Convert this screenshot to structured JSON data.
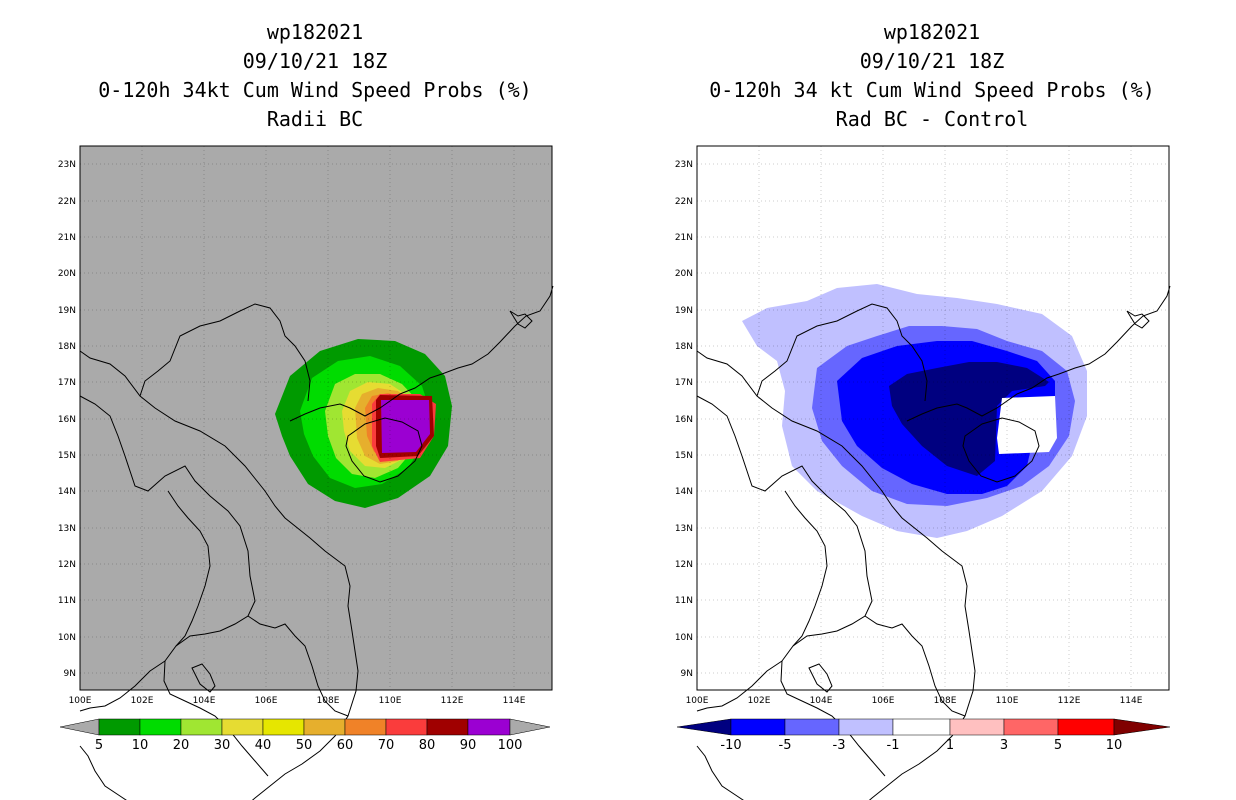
{
  "left_panel": {
    "title_lines": [
      "wp182021",
      "09/10/21 18Z",
      "0-120h 34kt Cum Wind Speed Probs (%)",
      "Radii BC"
    ],
    "background_color": "#aaaaaa",
    "colorbar": {
      "labels": [
        "5",
        "10",
        "20",
        "30",
        "40",
        "50",
        "60",
        "70",
        "80",
        "90",
        "100"
      ],
      "colors": [
        "#009a00",
        "#00dc00",
        "#a0e632",
        "#e6dc32",
        "#e6e600",
        "#e6af2d",
        "#f08228",
        "#fa3c3c",
        "#a00000",
        "#9b00d2"
      ]
    }
  },
  "right_panel": {
    "title_lines": [
      "wp182021",
      "09/10/21 18Z",
      "0-120h 34 kt Cum Wind Speed Probs (%)",
      "Rad BC - Control"
    ],
    "background_color": "#ffffff",
    "colorbar": {
      "labels": [
        "-10",
        "-5",
        "-3",
        "-1",
        "1",
        "3",
        "5",
        "10"
      ],
      "colors": [
        "#0000ff",
        "#6666ff",
        "#c0c0ff",
        "#ffffff",
        "#ffc0c0",
        "#ff6666",
        "#ff0000"
      ],
      "left_arrow_color": "#000080",
      "right_arrow_color": "#800000"
    }
  },
  "axes": {
    "lon_labels": [
      "100E",
      "102E",
      "104E",
      "106E",
      "108E",
      "110E",
      "112E",
      "114E"
    ],
    "lat_labels": [
      "23N",
      "22N",
      "21N",
      "20N",
      "19N",
      "18N",
      "17N",
      "16N",
      "15N",
      "14N",
      "13N",
      "12N",
      "11N",
      "10N",
      "9N"
    ]
  }
}
